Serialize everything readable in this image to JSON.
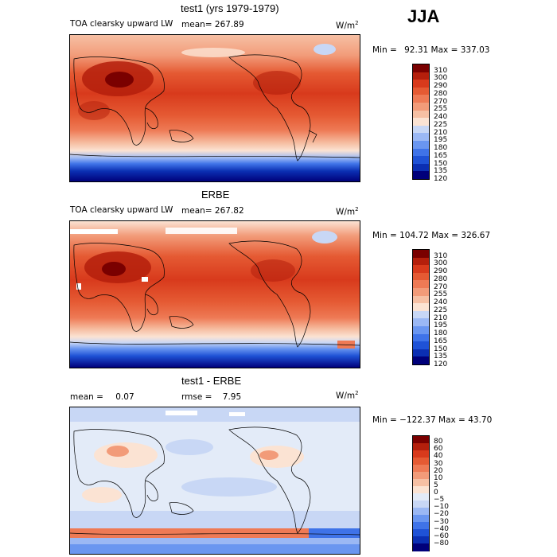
{
  "season": "JJA",
  "units_prefix": "W/m",
  "units_exp": "2",
  "colors": {
    "abs": [
      "#00007a",
      "#0b2fb3",
      "#1f52d6",
      "#3f73e8",
      "#6a96f0",
      "#9bb8f4",
      "#c8d7f5",
      "#fbe3d3",
      "#f6c0a4",
      "#f29b79",
      "#ee7a55",
      "#e55a33",
      "#d83a1c",
      "#b41f0c",
      "#7a0000"
    ],
    "diff": [
      "#00007a",
      "#0b2fb3",
      "#1f52d6",
      "#3f73e8",
      "#6a96f0",
      "#9bb8f4",
      "#c8d7f5",
      "#e3ebf8",
      "#fbe3d3",
      "#f6c0a4",
      "#f29b79",
      "#ee7a55",
      "#e55a33",
      "#d83a1c",
      "#b41f0c",
      "#7a0000"
    ]
  },
  "chart_data": [
    {
      "type": "heatmap",
      "title": "test1 (yrs 1979-1979)",
      "field": "TOA clearsky upward LW",
      "mean_label": "mean=",
      "mean": "267.89",
      "min_label": "Min =",
      "min": "92.31",
      "max_label": "Max =",
      "max": "337.03",
      "colorbar_levels": [
        "310",
        "300",
        "290",
        "280",
        "270",
        "255",
        "240",
        "225",
        "210",
        "195",
        "180",
        "165",
        "150",
        "135",
        "120"
      ]
    },
    {
      "type": "heatmap",
      "title": "ERBE",
      "field": "TOA clearsky upward LW",
      "mean_label": "mean=",
      "mean": "267.82",
      "min_label": "Min =",
      "min": "104.72",
      "max_label": "Max =",
      "max": "326.67",
      "colorbar_levels": [
        "310",
        "300",
        "290",
        "280",
        "270",
        "255",
        "240",
        "225",
        "210",
        "195",
        "180",
        "165",
        "150",
        "135",
        "120"
      ]
    },
    {
      "type": "heatmap",
      "title": "test1 - ERBE",
      "mean_label": "mean =",
      "mean": "0.07",
      "rmse_label": "rmse =",
      "rmse": "7.95",
      "min_label": "Min =",
      "min": "−122.37",
      "max_label": "Max =",
      "max": "43.70",
      "colorbar_levels": [
        "80",
        "60",
        "40",
        "30",
        "20",
        "10",
        "5",
        "0",
        "−5",
        "−10",
        "−20",
        "−30",
        "−40",
        "−60",
        "−80"
      ]
    }
  ]
}
